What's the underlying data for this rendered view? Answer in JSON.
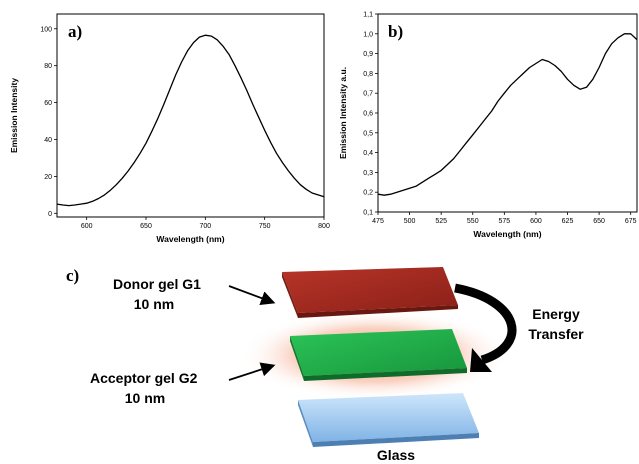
{
  "chart_data": [
    {
      "type": "line",
      "panel_label": "a)",
      "xlabel": "Wavelength (nm)",
      "ylabel": "Emission Intensity",
      "xlim": [
        575,
        800
      ],
      "ylim": [
        -2,
        108
      ],
      "xticks": [
        600,
        650,
        700,
        750,
        800
      ],
      "yticks": [
        0,
        20,
        40,
        60,
        80,
        100
      ],
      "grid": false,
      "x": [
        575,
        580,
        585,
        590,
        595,
        600,
        605,
        610,
        615,
        620,
        625,
        630,
        635,
        640,
        645,
        650,
        655,
        660,
        665,
        670,
        675,
        680,
        685,
        690,
        695,
        700,
        705,
        710,
        715,
        720,
        725,
        730,
        735,
        740,
        745,
        750,
        755,
        760,
        765,
        770,
        775,
        780,
        785,
        790,
        795,
        800
      ],
      "y": [
        5,
        4.5,
        4.2,
        4.5,
        5,
        5.5,
        6.5,
        8,
        10,
        12.5,
        15.5,
        19,
        23,
        27.5,
        32.5,
        38,
        44.5,
        51.5,
        59,
        67,
        75,
        82,
        88,
        92.5,
        95.5,
        96.5,
        96,
        94,
        90.5,
        86,
        80,
        73.5,
        66.5,
        59,
        52,
        45,
        38.5,
        32.5,
        27.5,
        23,
        19,
        15.5,
        13,
        11,
        10,
        9
      ]
    },
    {
      "type": "line",
      "panel_label": "b)",
      "xlabel": "Wavelength (nm)",
      "ylabel": "Emission Intensity a.u.",
      "xlim": [
        475,
        680
      ],
      "ylim": [
        0.1,
        1.1
      ],
      "xticks": [
        475,
        500,
        525,
        550,
        575,
        600,
        625,
        650,
        675
      ],
      "xticklabels": [
        "475",
        "500",
        "525",
        "550",
        "575",
        "600",
        "625",
        "650",
        "675"
      ],
      "yticks": [
        0.1,
        0.2,
        0.3,
        0.4,
        0.5,
        0.6,
        0.7,
        0.8,
        0.9,
        1.0,
        1.1
      ],
      "yticklabels": [
        "0,1",
        "0,2",
        "0,3",
        "0,4",
        "0,5",
        "0,6",
        "0,7",
        "0,8",
        "0,9",
        "1,0",
        "1,1"
      ],
      "grid": false,
      "x": [
        475,
        480,
        485,
        490,
        495,
        500,
        505,
        510,
        515,
        520,
        525,
        530,
        535,
        540,
        545,
        550,
        555,
        560,
        565,
        570,
        575,
        580,
        585,
        590,
        595,
        600,
        605,
        610,
        615,
        620,
        625,
        630,
        635,
        640,
        645,
        650,
        655,
        660,
        665,
        670,
        675,
        680
      ],
      "y": [
        0.19,
        0.185,
        0.19,
        0.2,
        0.21,
        0.22,
        0.23,
        0.25,
        0.27,
        0.29,
        0.31,
        0.34,
        0.37,
        0.41,
        0.45,
        0.49,
        0.53,
        0.57,
        0.61,
        0.66,
        0.7,
        0.74,
        0.77,
        0.8,
        0.83,
        0.85,
        0.87,
        0.86,
        0.84,
        0.81,
        0.77,
        0.74,
        0.72,
        0.73,
        0.77,
        0.83,
        0.9,
        0.95,
        0.98,
        1.0,
        1.0,
        0.97
      ]
    }
  ],
  "diagram": {
    "panel_label": "c)",
    "donor_label_line1": "Donor gel G1",
    "donor_label_line2": "10 nm",
    "acceptor_label_line1": "Acceptor gel G2",
    "acceptor_label_line2": "10 nm",
    "transfer_label_line1": "Energy",
    "transfer_label_line2": "Transfer",
    "glass_label": "Glass",
    "colors": {
      "donor": "#9e2a20",
      "acceptor": "#1fae4a",
      "glass": "#8fc0ea",
      "glow": "#f0a080"
    }
  }
}
